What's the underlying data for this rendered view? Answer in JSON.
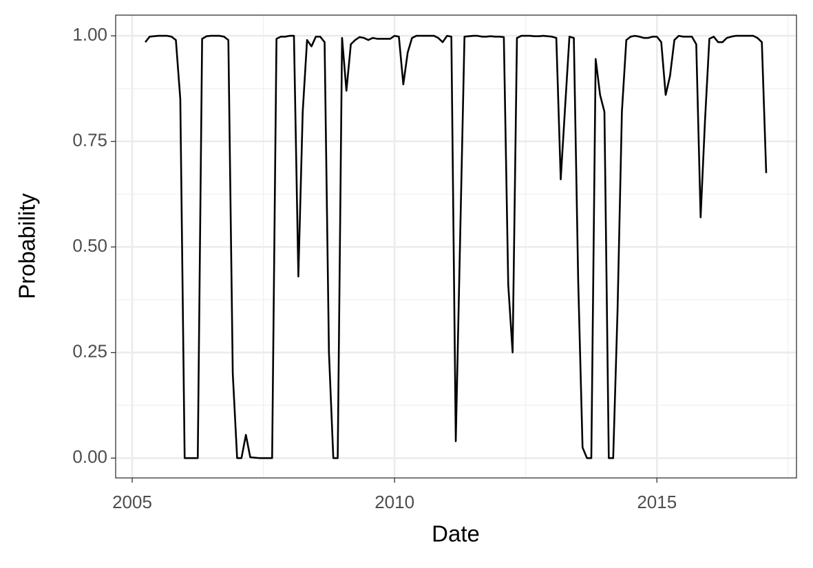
{
  "chart_data": {
    "type": "line",
    "x_label": "Date",
    "y_label": "Probability",
    "color": "#000000",
    "grid": true,
    "xlim": [
      2004.685,
      2017.66
    ],
    "ylim": [
      -0.047,
      1.049
    ],
    "xticks": [
      2005,
      2010,
      2015
    ],
    "yticks": [
      {
        "value": 0,
        "label": "0.00"
      },
      {
        "value": 0.25,
        "label": "0.25"
      },
      {
        "value": 0.5,
        "label": "0.50"
      },
      {
        "value": 0.75,
        "label": "0.75"
      },
      {
        "value": 1,
        "label": "1.00"
      }
    ],
    "minor_xgrid": [
      2007.5,
      2012.5,
      2017.5
    ],
    "minor_ygrid": [
      0.125,
      0.375,
      0.625,
      0.875
    ],
    "x": [
      2005.25,
      2005.333,
      2005.417,
      2005.5,
      2005.583,
      2005.667,
      2005.75,
      2005.833,
      2005.917,
      2006,
      2006.083,
      2006.167,
      2006.25,
      2006.333,
      2006.417,
      2006.5,
      2006.583,
      2006.667,
      2006.75,
      2006.833,
      2006.917,
      2007,
      2007.083,
      2007.167,
      2007.25,
      2007.333,
      2007.417,
      2007.5,
      2007.583,
      2007.667,
      2007.75,
      2007.833,
      2007.917,
      2008,
      2008.083,
      2008.167,
      2008.25,
      2008.333,
      2008.417,
      2008.5,
      2008.583,
      2008.667,
      2008.75,
      2008.833,
      2008.917,
      2009,
      2009.083,
      2009.167,
      2009.25,
      2009.333,
      2009.417,
      2009.5,
      2009.583,
      2009.667,
      2009.75,
      2009.833,
      2009.917,
      2010,
      2010.083,
      2010.167,
      2010.25,
      2010.333,
      2010.417,
      2010.5,
      2010.583,
      2010.667,
      2010.75,
      2010.833,
      2010.917,
      2011,
      2011.083,
      2011.167,
      2011.25,
      2011.333,
      2011.417,
      2011.5,
      2011.583,
      2011.667,
      2011.75,
      2011.833,
      2011.917,
      2012,
      2012.083,
      2012.167,
      2012.25,
      2012.333,
      2012.417,
      2012.5,
      2012.583,
      2012.667,
      2012.75,
      2012.833,
      2012.917,
      2013,
      2013.083,
      2013.167,
      2013.25,
      2013.333,
      2013.417,
      2013.5,
      2013.583,
      2013.667,
      2013.75,
      2013.833,
      2013.917,
      2014,
      2014.083,
      2014.167,
      2014.25,
      2014.333,
      2014.417,
      2014.5,
      2014.583,
      2014.667,
      2014.75,
      2014.833,
      2014.917,
      2015,
      2015.083,
      2015.167,
      2015.25,
      2015.333,
      2015.417,
      2015.5,
      2015.583,
      2015.667,
      2015.75,
      2015.833,
      2015.917,
      2016,
      2016.083,
      2016.167,
      2016.25,
      2016.333,
      2016.417,
      2016.5,
      2016.583,
      2016.667,
      2016.75,
      2016.833,
      2016.917,
      2017,
      2017.083
    ],
    "values": [
      0.985,
      0.998,
      0.999,
      1,
      1,
      1,
      0.998,
      0.99,
      0.85,
      0,
      0,
      0,
      0,
      0.993,
      0.999,
      1,
      1,
      1,
      0.998,
      0.99,
      0.2,
      0,
      0,
      0.055,
      0.002,
      0.001,
      0,
      0,
      0,
      0,
      0.993,
      0.998,
      0.998,
      1,
      1,
      0.43,
      0.82,
      0.99,
      0.975,
      0.998,
      0.998,
      0.985,
      0.25,
      0,
      0,
      0.995,
      0.87,
      0.98,
      0.99,
      0.997,
      0.995,
      0.99,
      0.995,
      0.993,
      0.993,
      0.993,
      0.993,
      1,
      0.998,
      0.885,
      0.96,
      0.995,
      1,
      1,
      1,
      1,
      1,
      0.995,
      0.985,
      1,
      0.998,
      0.04,
      0.52,
      0.998,
      0.999,
      1,
      1,
      0.998,
      0.998,
      0.999,
      0.998,
      0.998,
      0.997,
      0.41,
      0.25,
      0.995,
      1,
      1,
      1,
      0.999,
      0.999,
      1,
      0.999,
      0.998,
      0.995,
      0.66,
      0.83,
      0.998,
      0.995,
      0.42,
      0.025,
      0,
      0,
      0.945,
      0.86,
      0.82,
      0,
      0,
      0.35,
      0.82,
      0.99,
      0.998,
      1,
      0.998,
      0.995,
      0.995,
      0.998,
      0.998,
      0.985,
      0.86,
      0.905,
      0.99,
      1,
      0.998,
      0.998,
      0.998,
      0.98,
      0.57,
      0.8,
      0.993,
      0.998,
      0.985,
      0.985,
      0.995,
      0.998,
      1,
      1,
      1,
      1,
      1,
      0.995,
      0.985,
      0.675
    ]
  }
}
